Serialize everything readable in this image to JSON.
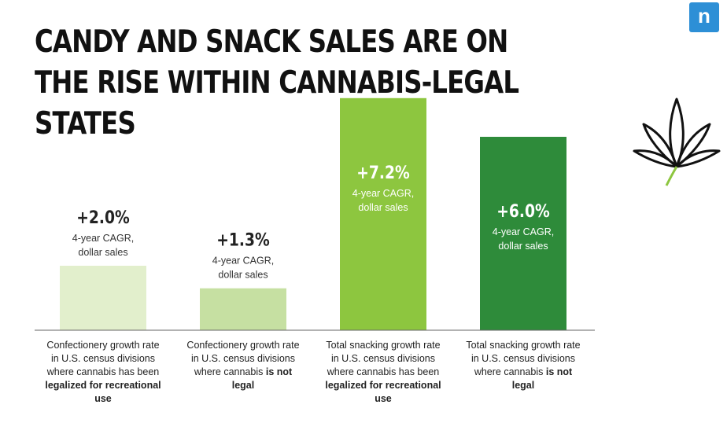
{
  "page": {
    "title": "CANDY AND SNACK SALES ARE ON THE RISE WITHIN CANNABIS-LEGAL STATES",
    "logo": "n"
  },
  "icons": {
    "leaf": "cannabis-leaf-icon"
  },
  "chart_data": {
    "type": "bar",
    "title": "CANDY AND SNACK SALES ARE ON THE RISE WITHIN CANNABIS-LEGAL STATES",
    "ylabel": "4-year CAGR, dollar sales (%)",
    "ylim": [
      0,
      8
    ],
    "grid": false,
    "categories": [
      {
        "text": "Confectionery growth rate in U.S. census divisions where cannabis has been ",
        "emphasis": "legalized for recreational use"
      },
      {
        "text": "Confectionery growth rate in U.S. census divisions where cannabis ",
        "emphasis": "is not legal"
      },
      {
        "text": "Total snacking growth rate in U.S. census divisions where cannabis has been ",
        "emphasis": "legalized for recreational use"
      },
      {
        "text": "Total snacking growth rate in U.S. census divisions where cannabis ",
        "emphasis": "is not legal"
      }
    ],
    "values": [
      2.0,
      1.3,
      7.2,
      6.0
    ],
    "labels": [
      "+2.0%",
      "+1.3%",
      "+7.2%",
      "+6.0%"
    ],
    "sublabels": [
      "4-year CAGR,",
      "dollar sales"
    ],
    "colors": [
      "#e2efcc",
      "#c6e0a2",
      "#8dc63f",
      "#2e8b3a"
    ]
  }
}
